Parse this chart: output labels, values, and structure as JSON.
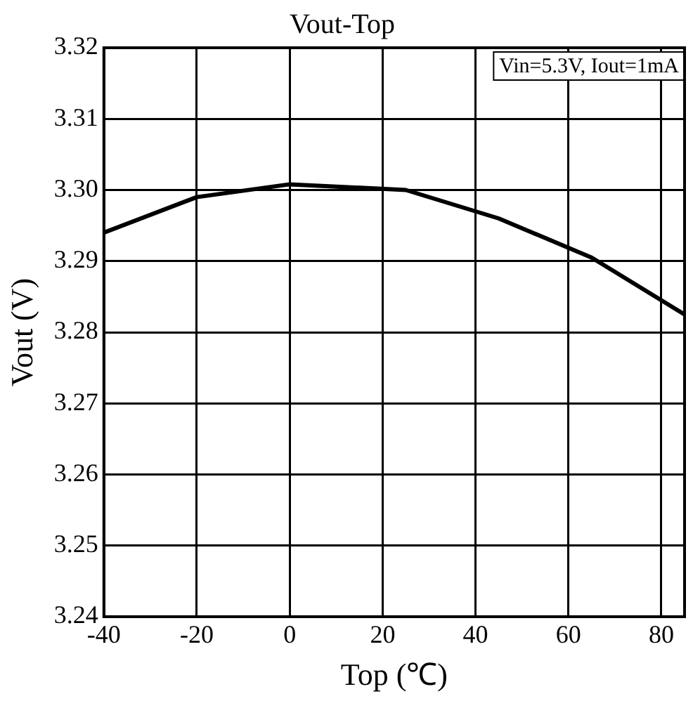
{
  "chart_data": {
    "type": "line",
    "title": "Vout-Top",
    "xlabel": "Top (℃)",
    "ylabel": "Vout (V)",
    "annotations": [
      "Vin=5.3V, Iout=1mA"
    ],
    "x": [
      -40,
      -20,
      0,
      25,
      45,
      65,
      85
    ],
    "series": [
      {
        "color": "#000000",
        "values": [
          3.294,
          3.299,
          3.3008,
          3.3,
          3.296,
          3.2905,
          3.2825
        ]
      }
    ],
    "xlim": [
      -40,
      85
    ],
    "xticks": [
      -40,
      -20,
      0,
      20,
      40,
      60,
      80
    ],
    "ylim": [
      3.24,
      3.32
    ],
    "yticks": [
      3.24,
      3.25,
      3.26,
      3.27,
      3.28,
      3.29,
      {
        "value": 3.3,
        "label": "3.30"
      },
      3.31,
      3.32
    ],
    "grid": true,
    "legend": false,
    "marker": "none",
    "line_style": "solid"
  }
}
